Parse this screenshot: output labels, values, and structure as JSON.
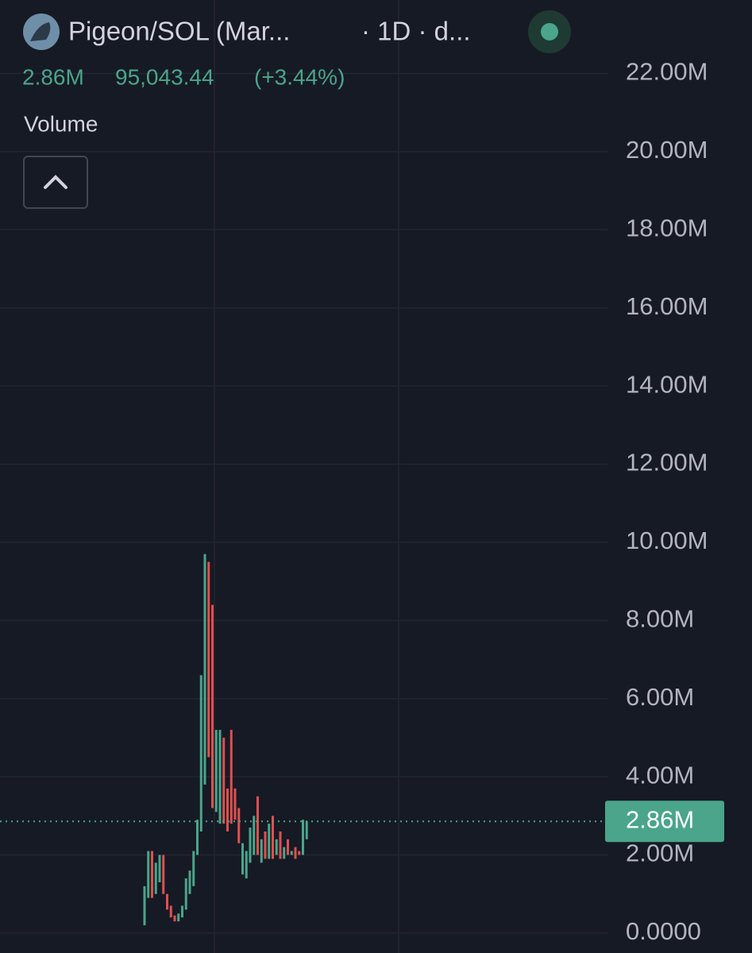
{
  "chart_data": {
    "type": "candlestick",
    "title": "Pigeon/SOL (Mar...",
    "subtitle": "· 1D · d...",
    "header_values": [
      "2.86M",
      "95,043.44",
      "(+3.44%)"
    ],
    "indicator": "Volume",
    "categories": [
      null,
      null,
      null,
      null,
      null,
      null,
      null,
      null,
      null,
      null,
      null,
      null,
      null,
      null,
      null,
      null,
      null,
      null,
      null,
      null,
      null,
      null,
      null,
      null,
      null,
      null,
      null,
      null,
      null,
      null,
      null,
      null,
      null,
      null,
      null,
      null,
      null,
      null,
      null,
      null,
      null,
      null,
      null,
      null
    ],
    "open": [
      200000,
      900000,
      2100000,
      1000000,
      1300000,
      2000000,
      1000000,
      700000,
      450000,
      300000,
      400000,
      600000,
      1000000,
      1200000,
      2000000,
      2600000,
      3800000,
      9500000,
      8400000,
      3100000,
      2800000,
      5000000,
      3700000,
      5200000,
      3700000,
      3200000,
      1500000,
      1400000,
      1800000,
      2000000,
      3500000,
      1800000,
      2600000,
      1900000,
      3000000,
      2000000,
      2600000,
      1900000,
      2400000,
      2000000,
      2200000,
      2100000,
      2000000,
      2400000
    ],
    "close": [
      1200000,
      2100000,
      900000,
      1800000,
      2000000,
      1000000,
      600000,
      400000,
      300000,
      500000,
      700000,
      1400000,
      1600000,
      2100000,
      2900000,
      6600000,
      9700000,
      4500000,
      3200000,
      5200000,
      5200000,
      2800000,
      2600000,
      2800000,
      2900000,
      2300000,
      2300000,
      2100000,
      2700000,
      3000000,
      2000000,
      2400000,
      1900000,
      2800000,
      1900000,
      2400000,
      1900000,
      2200000,
      2000000,
      2100000,
      1900000,
      2000000,
      2900000,
      2860000
    ],
    "up_color": "#4aa58a",
    "down_color": "#e0504f",
    "ylim": [
      -510000,
      23880000
    ],
    "yticks": [
      {
        "value": 0,
        "label": "0.0000"
      },
      {
        "value": 2000000,
        "label": "2.00M"
      },
      {
        "value": 4000000,
        "label": "4.00M"
      },
      {
        "value": 6000000,
        "label": "6.00M"
      },
      {
        "value": 8000000,
        "label": "8.00M"
      },
      {
        "value": 10000000,
        "label": "10.00M"
      },
      {
        "value": 12000000,
        "label": "12.00M"
      },
      {
        "value": 14000000,
        "label": "14.00M"
      },
      {
        "value": 16000000,
        "label": "16.00M"
      },
      {
        "value": 18000000,
        "label": "18.00M"
      },
      {
        "value": 20000000,
        "label": "20.00M"
      },
      {
        "value": 22000000,
        "label": "22.00M"
      }
    ],
    "last_price": {
      "value": 2860000,
      "label": "2.86M"
    },
    "grid": true
  }
}
